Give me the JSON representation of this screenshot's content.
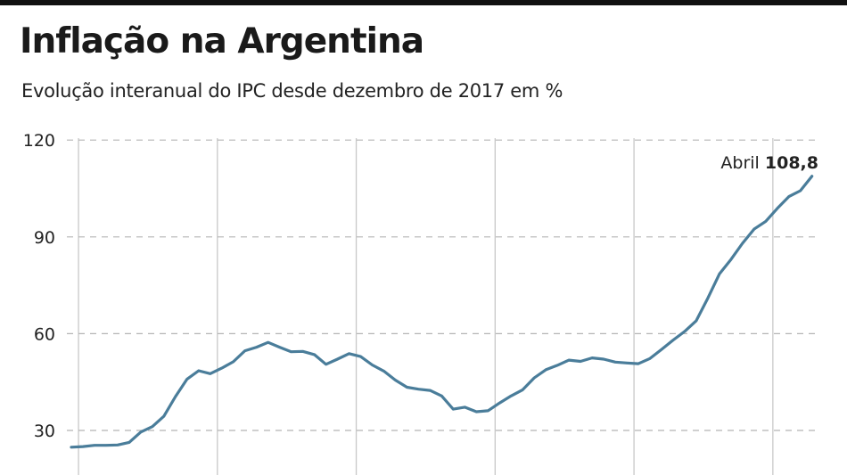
{
  "title": "Inflação na Argentina",
  "subtitle": "Evolução interanual do IPC desde dezembro de 2017 em %",
  "chart_data": {
    "type": "line",
    "title": "Inflação na Argentina",
    "subtitle": "Evolução interanual do IPC desde dezembro de 2017 em %",
    "x_start": "2017-12",
    "x_end": "2023-04",
    "x_frequency": "monthly",
    "ylim": [
      20,
      120
    ],
    "yticks": [
      30,
      60,
      90,
      120
    ],
    "grid": "horizontal dashed, vertical solid at year starts",
    "line_color": "#4a7d9a",
    "series": [
      {
        "values": [
          24.8,
          25.0,
          25.4,
          25.4,
          25.5,
          26.3,
          29.5,
          31.2,
          34.4,
          40.5,
          45.9,
          48.5,
          47.6,
          49.3,
          51.3,
          54.7,
          55.8,
          57.3,
          55.8,
          54.4,
          54.5,
          53.5,
          50.5,
          52.1,
          53.8,
          52.9,
          50.3,
          48.4,
          45.6,
          43.4,
          42.8,
          42.4,
          40.7,
          36.6,
          37.2,
          35.8,
          36.1,
          38.5,
          40.7,
          42.6,
          46.3,
          48.8,
          50.2,
          51.8,
          51.4,
          52.5,
          52.1,
          51.2,
          50.9,
          50.7,
          52.3,
          55.1,
          58.0,
          60.7,
          64.0,
          71.0,
          78.5,
          83.0,
          88.0,
          92.4,
          94.8,
          98.8,
          102.5,
          104.3,
          108.8
        ]
      }
    ],
    "annotation": {
      "label": "Abril",
      "value": "108,8"
    }
  }
}
